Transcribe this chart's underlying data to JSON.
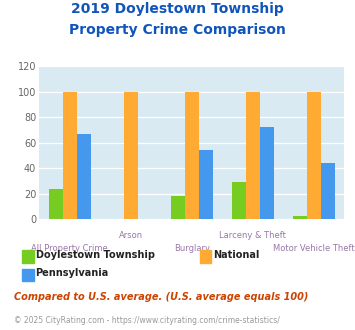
{
  "title_line1": "2019 Doylestown Township",
  "title_line2": "Property Crime Comparison",
  "categories": [
    "All Property Crime",
    "Arson",
    "Burglary",
    "Larceny & Theft",
    "Motor Vehicle Theft"
  ],
  "doylestown": [
    24,
    0,
    18,
    29,
    3
  ],
  "national": [
    100,
    100,
    100,
    100,
    100
  ],
  "pennsylvania": [
    67,
    0,
    54,
    72,
    44
  ],
  "color_doylestown": "#77cc22",
  "color_national": "#ffaa33",
  "color_pennsylvania": "#4499ee",
  "ylim": [
    0,
    120
  ],
  "yticks": [
    0,
    20,
    40,
    60,
    80,
    100,
    120
  ],
  "plot_bg": "#daeaf2",
  "grid_color": "#ffffff",
  "title_color": "#1155bb",
  "xlabel_color": "#9977aa",
  "footnote1": "Compared to U.S. average. (U.S. average equals 100)",
  "footnote2": "© 2025 CityRating.com - https://www.cityrating.com/crime-statistics/",
  "footnote1_color": "#cc4400",
  "footnote2_color": "#999999",
  "label_dt": "Doylestown Township",
  "label_nat": "National",
  "label_pa": "Pennsylvania"
}
